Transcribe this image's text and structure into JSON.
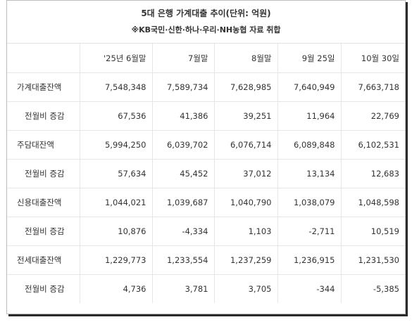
{
  "header": {
    "title": "5대 은행 가계대출 추이(단위: 억원)",
    "subtitle": "※KB국민·신한·하나·우리·NH농협 자료 취합"
  },
  "table": {
    "columns": [
      "",
      "'25년 6월말",
      "7월말",
      "8월말",
      "9월 25일",
      "10월 30일"
    ],
    "rows": [
      {
        "label": "가계대출잔액",
        "values": [
          "7,548,348",
          "7,589,734",
          "7,628,985",
          "7,640,949",
          "7,663,718"
        ]
      },
      {
        "label": "전월비 증감",
        "values": [
          "67,536",
          "41,386",
          "39,251",
          "11,964",
          "22,769"
        ]
      },
      {
        "label": "주담대잔액",
        "values": [
          "5,994,250",
          "6,039,702",
          "6,076,714",
          "6,089,848",
          "6,102,531"
        ]
      },
      {
        "label": "전월비 증감",
        "values": [
          "57,634",
          "45,452",
          "37,012",
          "13,134",
          "12,683"
        ]
      },
      {
        "label": "신용대출잔액",
        "values": [
          "1,044,021",
          "1,039,687",
          "1,040,790",
          "1,038,079",
          "1,048,598"
        ]
      },
      {
        "label": "전월비 증감",
        "values": [
          "10,876",
          "-4,334",
          "1,103",
          "-2,711",
          "10,519"
        ]
      },
      {
        "label": "전세대출잔액",
        "values": [
          "1,229,773",
          "1,233,554",
          "1,237,259",
          "1,236,915",
          "1,231,530"
        ]
      },
      {
        "label": "전월비 증감",
        "values": [
          "4,736",
          "3,781",
          "3,705",
          "-344",
          "-5,385"
        ]
      }
    ]
  }
}
